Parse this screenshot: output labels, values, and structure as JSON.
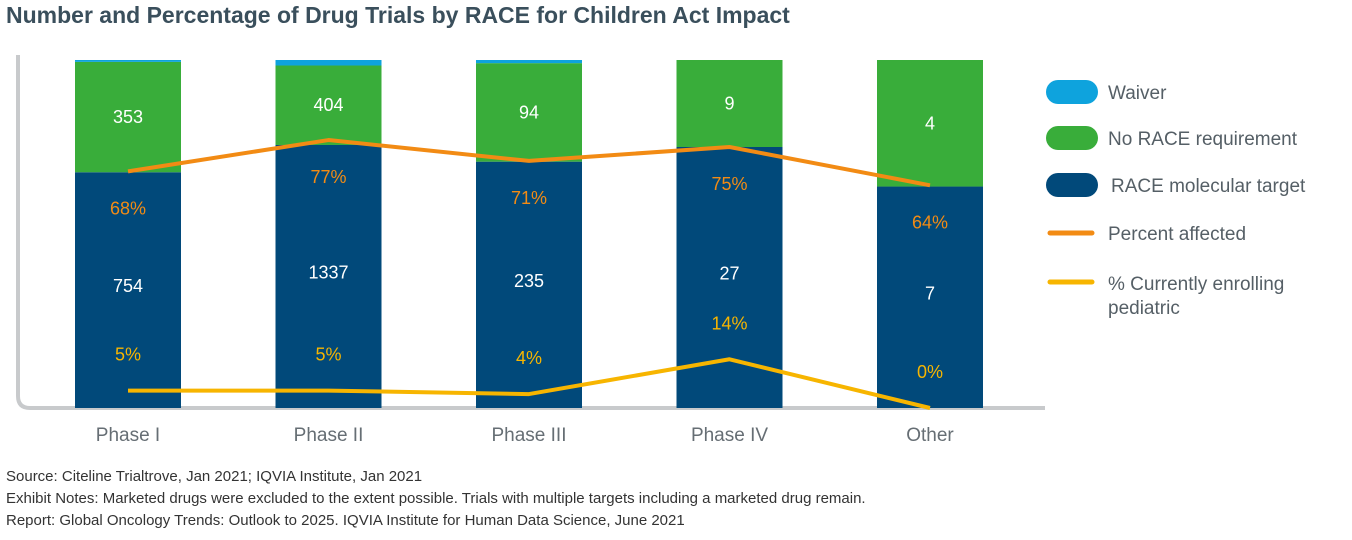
{
  "title": "Number and Percentage of Drug Trials by RACE for Children Act Impact",
  "colors": {
    "waiver": "#0ea3dd",
    "no_race": "#39ad3a",
    "race_target": "#01497a",
    "percent_affected": "#f28b14",
    "currently_enrolling": "#f7b500",
    "axis": "#c8cacc"
  },
  "chart_data": {
    "type": "bar",
    "stacked": true,
    "categories": [
      "Phase I",
      "Phase II",
      "Phase III",
      "Phase IV",
      "Other"
    ],
    "series": [
      {
        "name": "RACE molecular target",
        "values": [
          754,
          1337,
          235,
          27,
          7
        ],
        "labels": [
          "754",
          "1337",
          "235",
          "27",
          "7"
        ]
      },
      {
        "name": "No RACE requirement",
        "values": [
          353,
          404,
          94,
          9,
          4
        ],
        "labels": [
          "353",
          "404",
          "94",
          "9",
          "4"
        ]
      },
      {
        "name": "Waiver",
        "values": [
          6,
          28,
          3,
          0,
          0
        ]
      }
    ],
    "lines": [
      {
        "name": "Percent affected",
        "values": [
          68,
          77,
          71,
          75,
          64
        ],
        "labels": [
          "68%",
          "77%",
          "71%",
          "75%",
          "64%"
        ]
      },
      {
        "name": "% Currently enrolling pediatric",
        "values": [
          5,
          5,
          4,
          14,
          0
        ],
        "labels": [
          "5%",
          "5%",
          "4%",
          "14%",
          "0%"
        ]
      }
    ],
    "stack_scale": "100%",
    "legend": {
      "position": "right",
      "entries": [
        "Waiver",
        "No RACE requirement",
        "RACE molecular target",
        "Percent affected",
        "% Currently enrolling pediatric"
      ]
    }
  },
  "notes": {
    "source": "Source: Citeline Trialtrove, Jan 2021; IQVIA Institute, Jan 2021",
    "exhibit": "Exhibit Notes: Marketed drugs were excluded to the extent possible. Trials with multiple targets including a marketed drug remain.",
    "report": "Report: Global Oncology Trends: Outlook to 2025. IQVIA Institute for Human Data Science, June 2021"
  }
}
